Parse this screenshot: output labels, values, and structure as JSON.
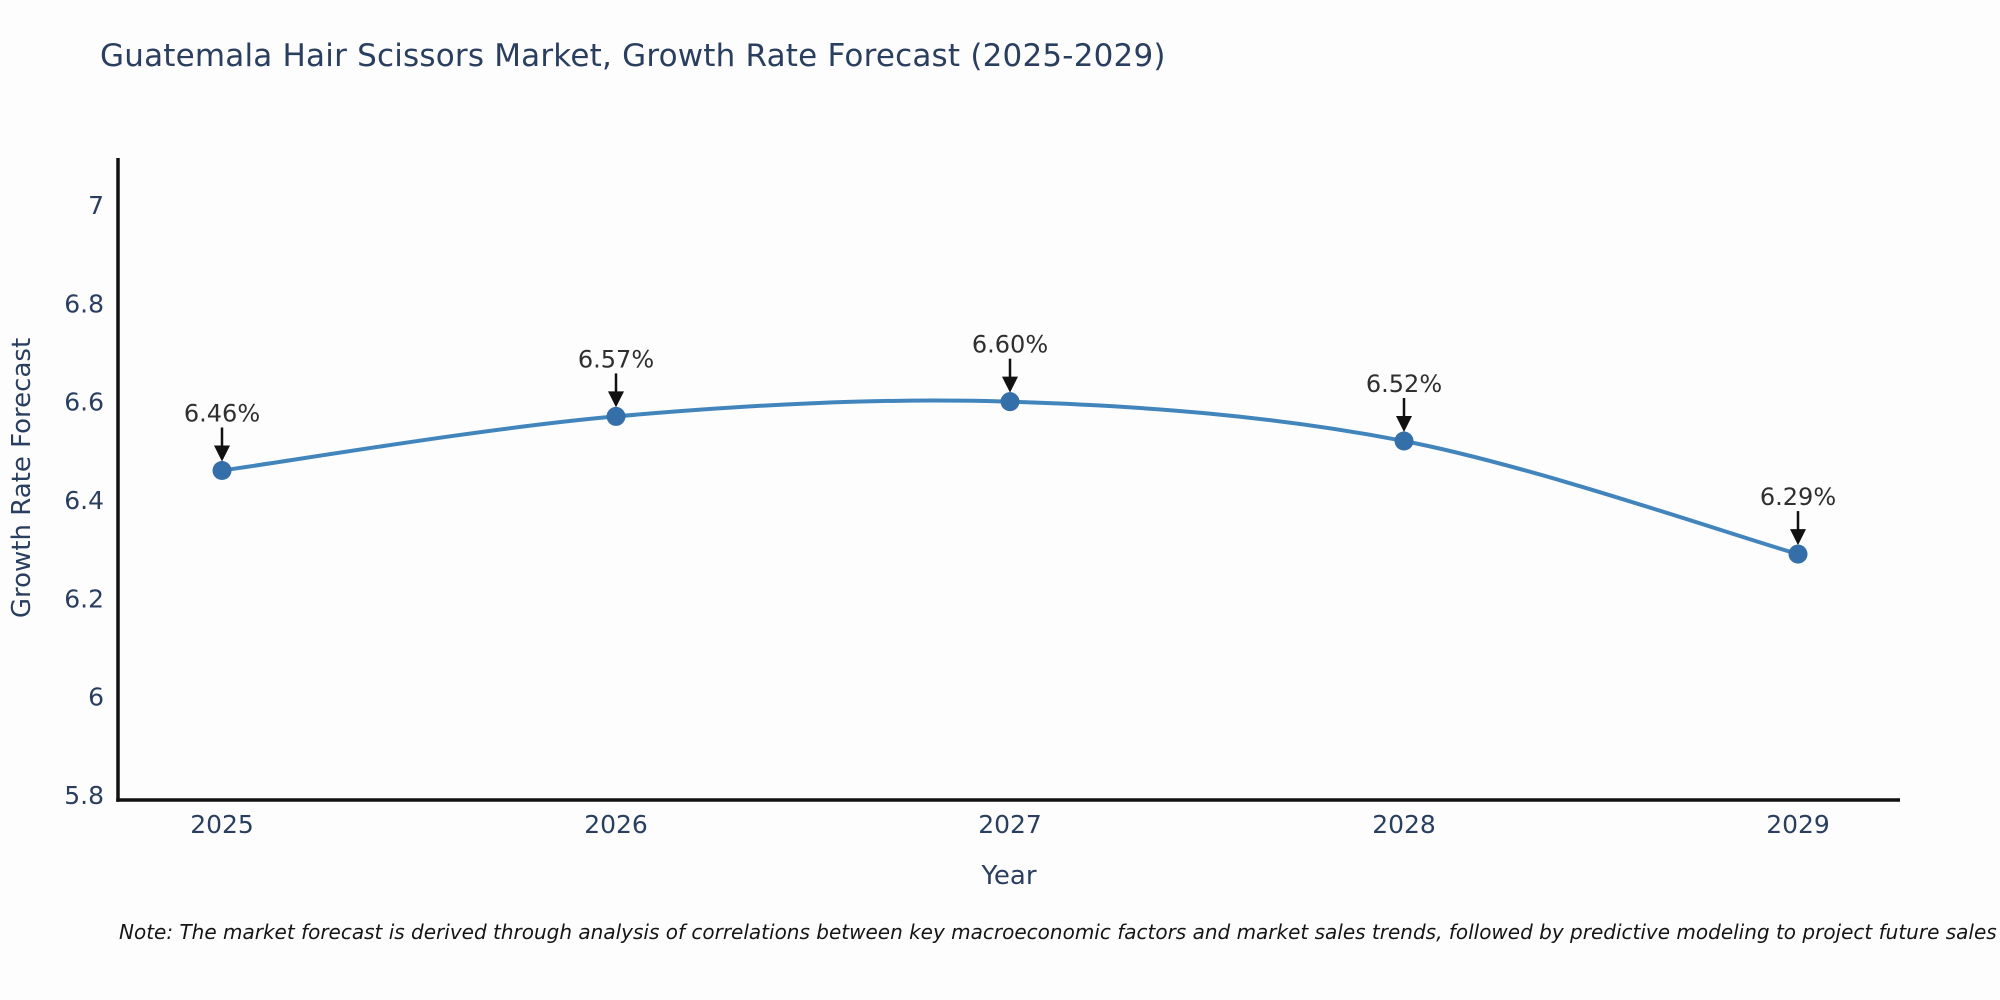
{
  "chart_data": {
    "type": "line",
    "title": "Guatemala Hair Scissors Market, Growth Rate Forecast (2025-2029)",
    "xlabel": "Year",
    "ylabel": "Growth Rate Forecast",
    "x": [
      2025,
      2026,
      2027,
      2028,
      2029
    ],
    "series": [
      {
        "name": "Growth Rate Forecast",
        "values": [
          6.46,
          6.57,
          6.6,
          6.52,
          6.29
        ]
      }
    ],
    "point_labels": [
      "6.46%",
      "6.57%",
      "6.60%",
      "6.52%",
      "6.29%"
    ],
    "xlim": [
      2025,
      2029
    ],
    "ylim": [
      5.8,
      7.0
    ],
    "yticks": [
      5.8,
      6,
      6.2,
      6.4,
      6.6,
      6.8,
      7
    ],
    "ytick_labels": [
      "5.8",
      "6",
      "6.2",
      "6.4",
      "6.6",
      "6.8",
      "7"
    ],
    "xtick_labels": [
      "2025",
      "2026",
      "2027",
      "2028",
      "2029"
    ],
    "grid": false,
    "legend_position": "none",
    "line_shape": "spline",
    "colors": {
      "background": "#fdfdfd",
      "text_primary": "#2a3f5f",
      "annotation_text": "#2f2f2f",
      "axis": "#111111",
      "line": "#4285bd",
      "marker": "#356fa9"
    }
  },
  "note": "Note: The market forecast is derived through analysis of correlations between key macroeconomic factors and market sales trends, followed by predictive modeling to project future sales"
}
